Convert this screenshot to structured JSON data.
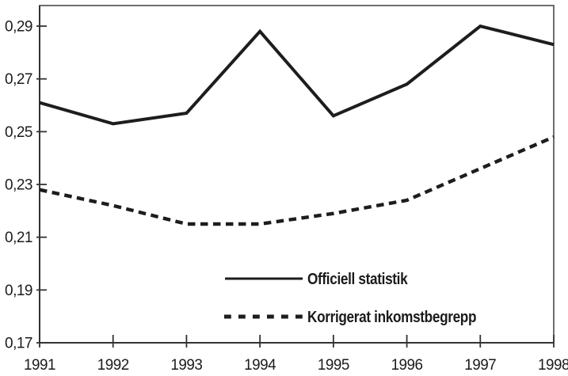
{
  "figure": {
    "background_color": "#ffffff",
    "ink_color": "#1d1d1d",
    "axis_color": "#333333",
    "border_color": "#4a4a4a",
    "text_color": "#1b1b1b"
  },
  "chart_data": {
    "type": "line",
    "title": "",
    "xlabel": "",
    "ylabel": "",
    "x_tick_labels": [
      "1991",
      "1992",
      "1993",
      "1994",
      "1995",
      "1996",
      "1997",
      "1998"
    ],
    "y_tick_labels": [
      "0,17",
      "0,19",
      "0,21",
      "0,23",
      "0,25",
      "0,27",
      "0,29"
    ],
    "ylim": [
      0.17,
      0.29
    ],
    "ytick_step": 0.02,
    "grid": false,
    "legend_position": "inside-bottom-center",
    "series": [
      {
        "name": "Officiell statistik",
        "line_style": "solid",
        "color": "#1d1d1d",
        "values": [
          0.261,
          0.253,
          0.257,
          0.288,
          0.256,
          0.268,
          0.29,
          0.283
        ]
      },
      {
        "name": "Korrigerat inkomstbegrepp",
        "line_style": "dashed",
        "color": "#1d1d1d",
        "values": [
          0.228,
          0.222,
          0.215,
          0.215,
          0.219,
          0.224,
          0.236,
          0.248
        ]
      }
    ]
  }
}
